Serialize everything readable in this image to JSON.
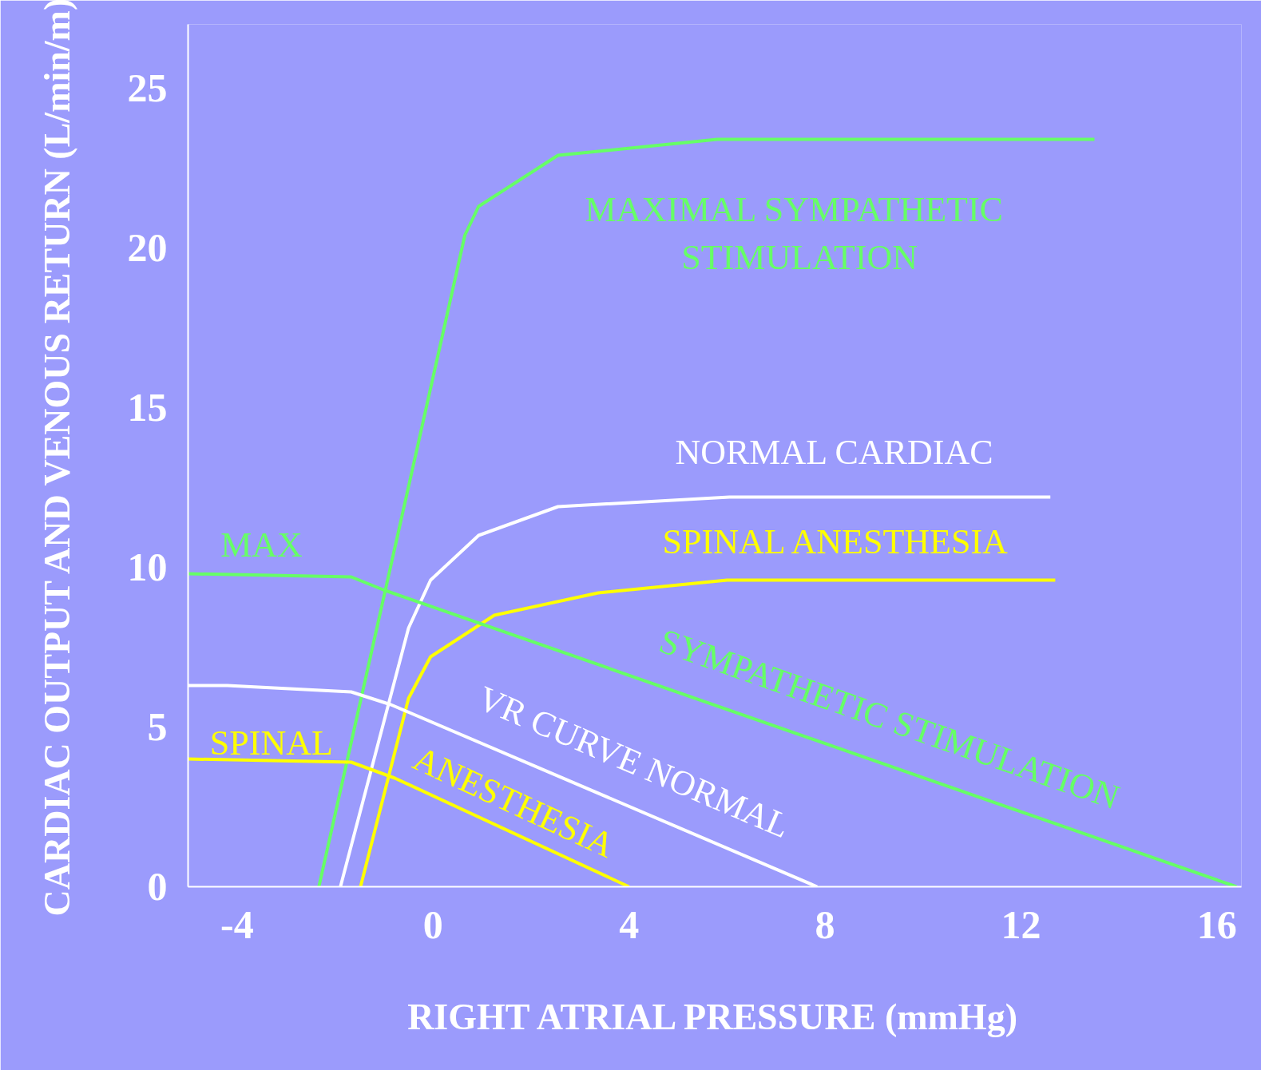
{
  "chart_data": {
    "type": "line",
    "xlabel": "RIGHT ATRIAL PRESSURE (mmHg)",
    "ylabel": "CARDIAC OUTPUT AND VENOUS RETURN (L/min/m)",
    "xlim": [
      -5,
      16.5
    ],
    "ylim": [
      0,
      27
    ],
    "xticks": [
      -4,
      0,
      4,
      8,
      12,
      16
    ],
    "yticks": [
      0,
      5,
      10,
      15,
      20,
      25
    ],
    "grid": false,
    "marker": "none",
    "line_style": "solid",
    "series": [
      {
        "color": "#66ff66",
        "x": [
          -2.33,
          0.65,
          0.93,
          2.55,
          5.8,
          13.5
        ],
        "values": [
          0,
          20.4,
          21.3,
          22.9,
          23.4,
          23.4
        ]
      },
      {
        "color": "#ffffff",
        "x": [
          -1.89,
          -0.5,
          -0.05,
          0.93,
          2.55,
          6.05,
          12.6
        ],
        "values": [
          0,
          8.1,
          9.6,
          11.0,
          11.9,
          12.2,
          12.2
        ]
      },
      {
        "color": "#ffff00",
        "x": [
          -1.48,
          -0.5,
          -0.05,
          1.25,
          3.37,
          6.0,
          12.7
        ],
        "values": [
          0,
          5.9,
          7.2,
          8.5,
          9.2,
          9.6,
          9.6
        ]
      },
      {
        "color": "#66ff66",
        "x": [
          -5,
          -1.67,
          -1.02,
          16.4
        ],
        "values": [
          9.8,
          9.7,
          9.3,
          0
        ]
      },
      {
        "color": "#ffffff",
        "x": [
          -5,
          -4.2,
          -1.67,
          -0.86,
          7.84
        ],
        "values": [
          6.3,
          6.3,
          6.1,
          5.7,
          0
        ]
      },
      {
        "color": "#ffff00",
        "x": [
          -5,
          -1.67,
          -0.78,
          4.0
        ],
        "values": [
          4.0,
          3.9,
          3.4,
          0
        ]
      }
    ],
    "annotations": [
      "MAXIMAL SYMPATHETIC",
      "STIMULATION",
      "NORMAL CARDIAC",
      "SPINAL ANESTHESIA",
      "MAX",
      "SYMPATHETIC  STIMULATION",
      "VR CURVE NORMAL",
      "SPINAL",
      "ANESTHESIA"
    ]
  }
}
